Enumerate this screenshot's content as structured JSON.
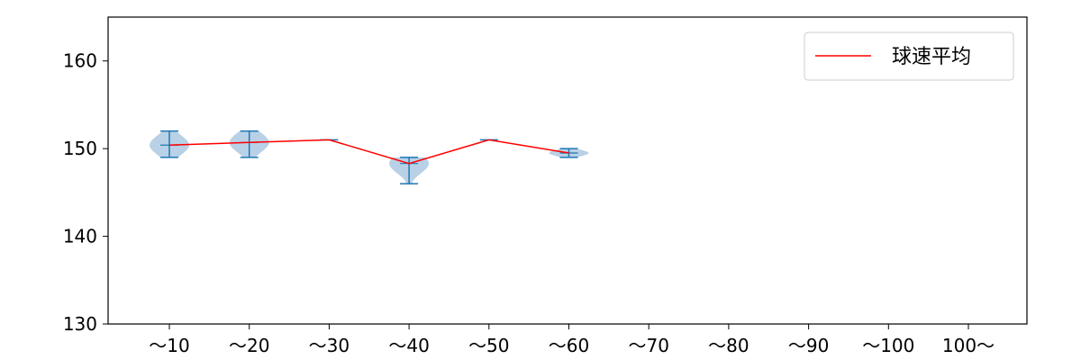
{
  "chart_data": {
    "type": "violin",
    "categories": [
      "〜10",
      "〜20",
      "〜30",
      "〜40",
      "〜50",
      "〜60",
      "〜70",
      "〜80",
      "〜90",
      "〜100",
      "100〜"
    ],
    "ylim": [
      130,
      165
    ],
    "yticks": [
      130,
      140,
      150,
      160
    ],
    "grid": false,
    "legend": {
      "position": "top-right",
      "entries": [
        "球速平均"
      ]
    },
    "series": [
      {
        "name": "球速平均",
        "type": "line",
        "color": "#ff0000",
        "values": [
          150.4,
          150.7,
          151.0,
          148.3,
          151.0,
          149.5,
          null,
          null,
          null,
          null,
          null
        ]
      }
    ],
    "distributions": [
      {
        "category": "〜10",
        "min": 149.0,
        "max": 152.0,
        "mean": 150.4
      },
      {
        "category": "〜20",
        "min": 149.0,
        "max": 152.0,
        "mean": 150.7
      },
      {
        "category": "〜30",
        "min": 151.0,
        "max": 151.0,
        "mean": 151.0
      },
      {
        "category": "〜40",
        "min": 146.0,
        "max": 149.0,
        "mean": 148.3
      },
      {
        "category": "〜50",
        "min": 151.0,
        "max": 151.0,
        "mean": 151.0
      },
      {
        "category": "〜60",
        "min": 149.0,
        "max": 150.0,
        "mean": 149.5
      }
    ],
    "colors": {
      "violin_fill": "#a8c5e0",
      "violin_line": "#1f77b4",
      "mean_line": "#ff0000"
    }
  }
}
